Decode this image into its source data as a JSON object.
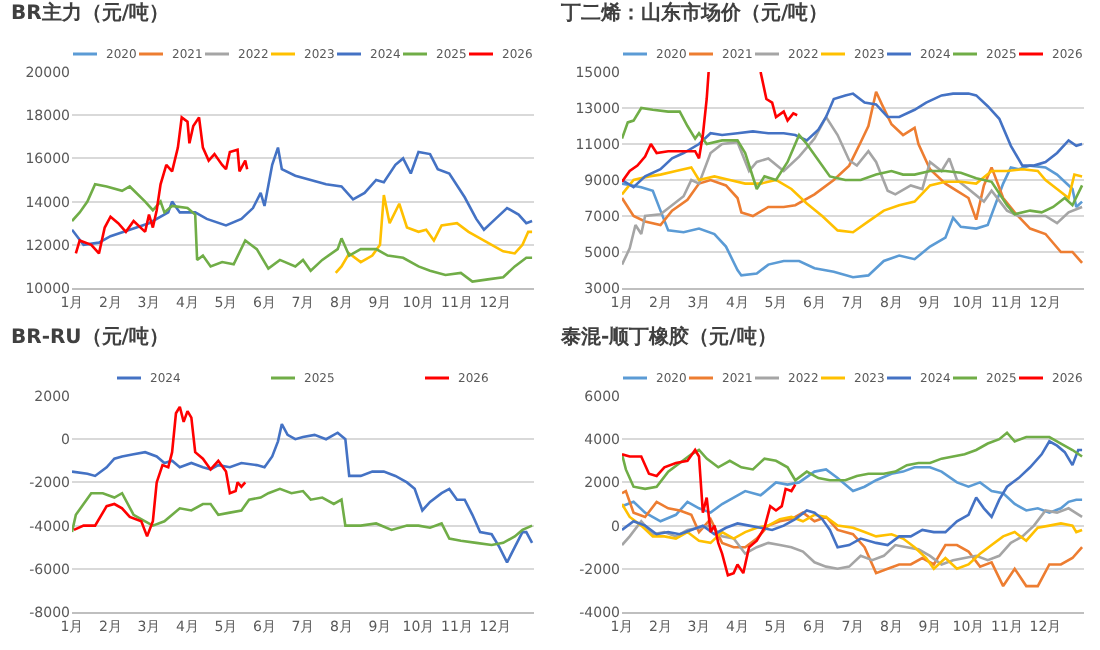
{
  "chart_data": [
    {
      "type": "line",
      "title": "BR主力（元/吨）",
      "xlim": [
        1,
        13
      ],
      "xticks": [
        {
          "value": 1,
          "label": "1月"
        },
        {
          "value": 2,
          "label": "2月"
        },
        {
          "value": 3,
          "label": "3月"
        },
        {
          "value": 4,
          "label": "4月"
        },
        {
          "value": 5,
          "label": "5月"
        },
        {
          "value": 6,
          "label": "6月"
        },
        {
          "value": 7,
          "label": "7月"
        },
        {
          "value": 8,
          "label": "8月"
        },
        {
          "value": 9,
          "label": "9月"
        },
        {
          "value": 10,
          "label": "10月"
        },
        {
          "value": 11,
          "label": "11月"
        },
        {
          "value": 12,
          "label": "12月"
        }
      ],
      "ylim": [
        10000,
        20000
      ],
      "yticks": [
        10000,
        12000,
        14000,
        16000,
        18000,
        20000
      ],
      "grid": "y",
      "legend": "top",
      "series": [
        {
          "name": "2020",
          "color": "#5b9bd5"
        },
        {
          "name": "2021",
          "color": "#ed7d31"
        },
        {
          "name": "2022",
          "color": "#a5a5a5"
        },
        {
          "name": "2023",
          "color": "#ffc000",
          "x": [
            7.85,
            8.0,
            8.2,
            8.5,
            8.8,
            9.0,
            9.1,
            9.25,
            9.5,
            9.7,
            10.0,
            10.2,
            10.4,
            10.6,
            11.0,
            11.3,
            11.6,
            11.9,
            12.2,
            12.5,
            12.7,
            12.85,
            12.95
          ],
          "values": [
            10700,
            11000,
            11600,
            11200,
            11500,
            12000,
            14300,
            13000,
            13900,
            12800,
            12600,
            12700,
            12200,
            12900,
            13000,
            12600,
            12300,
            12000,
            11700,
            11600,
            12000,
            12600,
            12600
          ]
        },
        {
          "name": "2024",
          "color": "#4472c4",
          "x": [
            1.0,
            1.3,
            1.7,
            2.0,
            2.5,
            3.0,
            3.5,
            3.6,
            3.8,
            4.2,
            4.5,
            5.0,
            5.4,
            5.7,
            5.9,
            6.0,
            6.2,
            6.35,
            6.45,
            6.8,
            7.2,
            7.6,
            8.0,
            8.3,
            8.6,
            8.9,
            9.1,
            9.4,
            9.6,
            9.8,
            10.0,
            10.3,
            10.5,
            10.8,
            11.2,
            11.5,
            11.7,
            12.0,
            12.3,
            12.6,
            12.8,
            12.95
          ],
          "values": [
            12700,
            12000,
            12100,
            12400,
            12700,
            13000,
            13500,
            14000,
            13500,
            13500,
            13200,
            12900,
            13200,
            13700,
            14400,
            13800,
            15700,
            16500,
            15500,
            15200,
            15000,
            14800,
            14700,
            14100,
            14400,
            15000,
            14900,
            15700,
            16000,
            15300,
            16300,
            16200,
            15500,
            15300,
            14200,
            13200,
            12700,
            13200,
            13700,
            13400,
            13000,
            13100
          ]
        },
        {
          "name": "2025",
          "color": "#70ad47",
          "x": [
            1.0,
            1.2,
            1.4,
            1.6,
            1.9,
            2.3,
            2.5,
            2.9,
            3.1,
            3.3,
            3.4,
            3.6,
            4.0,
            4.2,
            4.25,
            4.4,
            4.6,
            4.9,
            5.2,
            5.5,
            5.8,
            6.1,
            6.4,
            6.8,
            7.0,
            7.2,
            7.5,
            7.9,
            8.0,
            8.2,
            8.5,
            8.9,
            9.2,
            9.6,
            10.0,
            10.3,
            10.7,
            11.1,
            11.4,
            11.8,
            12.2,
            12.5,
            12.8,
            12.95
          ],
          "values": [
            13100,
            13500,
            14000,
            14800,
            14700,
            14500,
            14700,
            14000,
            13600,
            14000,
            13500,
            13800,
            13700,
            13400,
            11300,
            11500,
            11000,
            11200,
            11100,
            12200,
            11800,
            10900,
            11300,
            11000,
            11300,
            10800,
            11300,
            11800,
            12300,
            11500,
            11800,
            11800,
            11500,
            11400,
            11000,
            10800,
            10600,
            10700,
            10300,
            10400,
            10500,
            11000,
            11400,
            11400
          ]
        },
        {
          "name": "2026",
          "color": "#ff0000",
          "x": [
            1.1,
            1.2,
            1.5,
            1.7,
            1.85,
            2.0,
            2.2,
            2.4,
            2.6,
            2.9,
            3.0,
            3.1,
            3.2,
            3.3,
            3.45,
            3.6,
            3.75,
            3.85,
            4.0,
            4.05,
            4.15,
            4.3,
            4.4,
            4.55,
            4.7,
            4.9,
            5.0,
            5.1,
            5.3,
            5.35,
            5.5,
            5.55
          ],
          "values": [
            11600,
            12200,
            12000,
            11600,
            12800,
            13300,
            13000,
            12600,
            13100,
            12600,
            13400,
            12800,
            13600,
            14800,
            15700,
            15400,
            16500,
            17900,
            17700,
            16700,
            17500,
            17900,
            16500,
            15900,
            16200,
            15700,
            15500,
            16300,
            16400,
            15400,
            15900,
            15500
          ]
        }
      ]
    },
    {
      "type": "line",
      "title": "丁二烯：山东市场价（元/吨）",
      "xlim": [
        1,
        13
      ],
      "xticks": [
        {
          "value": 1,
          "label": "1月"
        },
        {
          "value": 2,
          "label": "2月"
        },
        {
          "value": 3,
          "label": "3月"
        },
        {
          "value": 4,
          "label": "4月"
        },
        {
          "value": 5,
          "label": "5月"
        },
        {
          "value": 6,
          "label": "6月"
        },
        {
          "value": 7,
          "label": "7月"
        },
        {
          "value": 8,
          "label": "8月"
        },
        {
          "value": 9,
          "label": "9月"
        },
        {
          "value": 10,
          "label": "10月"
        },
        {
          "value": 11,
          "label": "11月"
        },
        {
          "value": 12,
          "label": "12月"
        }
      ],
      "ylim": [
        3000,
        15000
      ],
      "yticks": [
        3000,
        5000,
        7000,
        9000,
        11000,
        13000,
        15000
      ],
      "grid": "y",
      "legend": "top",
      "series": [
        {
          "name": "2020",
          "color": "#5b9bd5",
          "x": [
            1.0,
            1.5,
            1.8,
            2.0,
            2.2,
            2.6,
            3.0,
            3.4,
            3.7,
            4.0,
            4.1,
            4.5,
            4.8,
            5.2,
            5.6,
            6.0,
            6.5,
            7.0,
            7.4,
            7.8,
            8.2,
            8.6,
            9.0,
            9.4,
            9.6,
            9.8,
            10.2,
            10.5,
            10.9,
            11.1,
            11.3,
            11.6,
            12.0,
            12.3,
            12.7,
            12.8,
            12.95
          ],
          "values": [
            8800,
            8600,
            8400,
            7300,
            6200,
            6100,
            6300,
            6000,
            5300,
            4000,
            3700,
            3800,
            4300,
            4500,
            4500,
            4100,
            3900,
            3600,
            3700,
            4500,
            4800,
            4600,
            5300,
            5800,
            6900,
            6400,
            6300,
            6500,
            8800,
            9700,
            9600,
            9800,
            9700,
            9300,
            8500,
            7500,
            7800
          ]
        },
        {
          "name": "2021",
          "color": "#ed7d31",
          "x": [
            1.0,
            1.3,
            1.6,
            2.0,
            2.3,
            2.7,
            3.0,
            3.3,
            3.7,
            4.0,
            4.1,
            4.4,
            4.8,
            5.2,
            5.5,
            6.0,
            6.5,
            6.9,
            7.2,
            7.4,
            7.6,
            7.75,
            8.0,
            8.3,
            8.6,
            8.7,
            9.0,
            9.4,
            9.7,
            10.0,
            10.2,
            10.4,
            10.6,
            10.9,
            11.2,
            11.6,
            12.0,
            12.4,
            12.7,
            12.95
          ],
          "values": [
            8000,
            7000,
            6700,
            6500,
            7300,
            7900,
            8800,
            9000,
            8700,
            8000,
            7200,
            7000,
            7500,
            7500,
            7600,
            8200,
            9000,
            9800,
            11100,
            12000,
            13900,
            13200,
            12100,
            11500,
            11900,
            11000,
            9600,
            8800,
            8400,
            8000,
            6800,
            8700,
            9700,
            8000,
            7200,
            6300,
            6000,
            5000,
            5000,
            4400
          ]
        },
        {
          "name": "2022",
          "color": "#a5a5a5",
          "x": [
            1.0,
            1.2,
            1.35,
            1.5,
            1.6,
            2.0,
            2.3,
            2.6,
            2.8,
            3.0,
            3.3,
            3.6,
            4.0,
            4.3,
            4.5,
            4.8,
            5.2,
            5.6,
            6.0,
            6.3,
            6.6,
            6.9,
            7.1,
            7.4,
            7.6,
            7.9,
            8.1,
            8.5,
            8.8,
            9.0,
            9.3,
            9.5,
            9.7,
            10.0,
            10.4,
            10.6,
            11.0,
            11.3,
            11.7,
            12.0,
            12.3,
            12.6,
            12.95
          ],
          "values": [
            4300,
            5200,
            6500,
            6000,
            7000,
            7100,
            7600,
            8100,
            9000,
            8800,
            10500,
            11000,
            11100,
            9500,
            10000,
            10200,
            9500,
            10300,
            11300,
            12500,
            11500,
            10100,
            9800,
            10600,
            10000,
            8400,
            8200,
            8700,
            8500,
            10000,
            9500,
            10200,
            9000,
            8500,
            7800,
            8400,
            7300,
            7000,
            7000,
            7000,
            6600,
            7200,
            7500
          ]
        },
        {
          "name": "2023",
          "color": "#ffc000",
          "x": [
            1.0,
            1.3,
            1.7,
            2.0,
            2.4,
            2.8,
            3.0,
            3.4,
            3.8,
            4.2,
            4.6,
            5.0,
            5.4,
            5.8,
            6.2,
            6.6,
            7.0,
            7.4,
            7.8,
            8.2,
            8.6,
            9.0,
            9.4,
            9.8,
            10.2,
            10.6,
            11.0,
            11.4,
            11.8,
            12.0,
            12.3,
            12.6,
            12.75,
            12.95
          ],
          "values": [
            8200,
            9000,
            9200,
            9300,
            9500,
            9700,
            9000,
            9200,
            9000,
            8800,
            8800,
            9000,
            8500,
            7700,
            7000,
            6200,
            6100,
            6700,
            7300,
            7600,
            7800,
            8700,
            8900,
            8900,
            8800,
            9500,
            9500,
            9600,
            9500,
            9000,
            8500,
            8000,
            9300,
            9200
          ]
        },
        {
          "name": "2024",
          "color": "#4472c4",
          "x": [
            1.0,
            1.3,
            1.6,
            2.0,
            2.3,
            2.6,
            3.0,
            3.3,
            3.6,
            4.0,
            4.4,
            4.8,
            5.2,
            5.5,
            5.8,
            6.1,
            6.3,
            6.5,
            6.8,
            7.0,
            7.3,
            7.6,
            7.9,
            8.2,
            8.6,
            8.9,
            9.3,
            9.6,
            10.0,
            10.2,
            10.5,
            10.8,
            11.1,
            11.4,
            11.7,
            12.0,
            12.3,
            12.6,
            12.8,
            12.95
          ],
          "values": [
            9000,
            8600,
            9200,
            9600,
            10200,
            10500,
            11000,
            11600,
            11500,
            11600,
            11700,
            11600,
            11600,
            11500,
            11200,
            11800,
            12500,
            13500,
            13700,
            13800,
            13300,
            13200,
            12500,
            12500,
            12900,
            13300,
            13700,
            13800,
            13800,
            13700,
            13100,
            12400,
            10900,
            9800,
            9800,
            10000,
            10500,
            11200,
            10900,
            11000
          ]
        },
        {
          "name": "2025",
          "color": "#70ad47",
          "x": [
            1.0,
            1.15,
            1.3,
            1.5,
            1.8,
            2.2,
            2.5,
            2.7,
            2.9,
            3.0,
            3.2,
            3.6,
            4.0,
            4.2,
            4.5,
            4.7,
            5.0,
            5.3,
            5.6,
            5.8,
            6.1,
            6.4,
            6.8,
            7.2,
            7.6,
            8.0,
            8.3,
            8.6,
            9.0,
            9.4,
            9.8,
            10.2,
            10.6,
            11.0,
            11.2,
            11.6,
            11.9,
            12.2,
            12.5,
            12.7,
            12.95
          ],
          "values": [
            11300,
            12200,
            12300,
            13000,
            12900,
            12800,
            12800,
            12000,
            11300,
            11600,
            11000,
            11200,
            11200,
            10500,
            8500,
            9200,
            9000,
            10000,
            11500,
            11000,
            10100,
            9200,
            9000,
            9000,
            9300,
            9500,
            9300,
            9300,
            9500,
            9500,
            9400,
            9100,
            8900,
            7600,
            7100,
            7300,
            7200,
            7500,
            8000,
            7600,
            8700
          ]
        },
        {
          "name": "2026",
          "color": "#ff0000",
          "x": [
            1.0,
            1.2,
            1.4,
            1.6,
            1.75,
            1.9,
            2.2,
            2.6,
            2.9,
            3.0,
            3.1,
            3.2,
            3.25,
            3.3,
            4.5,
            4.6,
            4.75,
            4.9,
            5.0,
            5.2,
            5.3,
            5.45,
            5.55
          ],
          "values": [
            8900,
            9500,
            9800,
            10300,
            11000,
            10500,
            10600,
            10600,
            10600,
            10200,
            11500,
            13500,
            15000,
            null,
            null,
            15000,
            13500,
            13300,
            12500,
            12800,
            12300,
            12700,
            12600
          ]
        }
      ]
    },
    {
      "type": "line",
      "title": "BR-RU（元/吨）",
      "xlim": [
        1,
        13
      ],
      "xticks": [
        {
          "value": 1,
          "label": "1月"
        },
        {
          "value": 2,
          "label": "2月"
        },
        {
          "value": 3,
          "label": "3月"
        },
        {
          "value": 4,
          "label": "4月"
        },
        {
          "value": 5,
          "label": "5月"
        },
        {
          "value": 6,
          "label": "6月"
        },
        {
          "value": 7,
          "label": "7月"
        },
        {
          "value": 8,
          "label": "8月"
        },
        {
          "value": 9,
          "label": "9月"
        },
        {
          "value": 10,
          "label": "10月"
        },
        {
          "value": 11,
          "label": "11月"
        },
        {
          "value": 12,
          "label": "12月"
        }
      ],
      "ylim": [
        -8000,
        2000
      ],
      "yticks": [
        -8000,
        -6000,
        -4000,
        -2000,
        0,
        2000
      ],
      "grid": "y",
      "legend": "top",
      "series": [
        {
          "name": "2024",
          "color": "#4472c4",
          "x": [
            1.0,
            1.4,
            1.6,
            1.9,
            2.1,
            2.3,
            2.6,
            2.9,
            3.2,
            3.4,
            3.6,
            3.8,
            4.1,
            4.4,
            4.6,
            4.8,
            5.1,
            5.4,
            5.8,
            6.0,
            6.2,
            6.35,
            6.45,
            6.6,
            6.8,
            7.0,
            7.3,
            7.6,
            7.9,
            8.1,
            8.2,
            8.5,
            8.8,
            9.1,
            9.4,
            9.7,
            9.9,
            10.1,
            10.3,
            10.6,
            10.8,
            11.0,
            11.2,
            11.4,
            11.6,
            11.9,
            12.1,
            12.3,
            12.5,
            12.7,
            12.8,
            12.95
          ],
          "values": [
            -1500,
            -1600,
            -1700,
            -1300,
            -900,
            -800,
            -700,
            -600,
            -800,
            -1100,
            -1000,
            -1300,
            -1100,
            -1300,
            -1400,
            -1200,
            -1300,
            -1100,
            -1200,
            -1300,
            -800,
            -100,
            700,
            200,
            0,
            100,
            200,
            0,
            300,
            0,
            -1700,
            -1700,
            -1500,
            -1500,
            -1700,
            -2000,
            -2300,
            -3300,
            -2900,
            -2500,
            -2300,
            -2800,
            -2800,
            -3500,
            -4300,
            -4400,
            -5000,
            -5700,
            -5000,
            -4300,
            -4300,
            -4800
          ]
        },
        {
          "name": "2025",
          "color": "#70ad47",
          "x": [
            1.0,
            1.1,
            1.3,
            1.5,
            1.8,
            2.1,
            2.3,
            2.6,
            2.9,
            3.1,
            3.4,
            3.8,
            4.1,
            4.4,
            4.6,
            4.8,
            5.1,
            5.4,
            5.6,
            5.9,
            6.1,
            6.4,
            6.7,
            7.0,
            7.2,
            7.5,
            7.8,
            8.0,
            8.1,
            8.5,
            8.9,
            9.3,
            9.7,
            10.0,
            10.3,
            10.6,
            10.8,
            11.1,
            11.5,
            11.9,
            12.2,
            12.5,
            12.7,
            12.95
          ],
          "values": [
            -4300,
            -3500,
            -3000,
            -2500,
            -2500,
            -2700,
            -2500,
            -3500,
            -3800,
            -4000,
            -3800,
            -3200,
            -3300,
            -3000,
            -3000,
            -3500,
            -3400,
            -3300,
            -2800,
            -2700,
            -2500,
            -2300,
            -2500,
            -2400,
            -2800,
            -2700,
            -3000,
            -2800,
            -4000,
            -4000,
            -3900,
            -4200,
            -4000,
            -4000,
            -4100,
            -3900,
            -4600,
            -4700,
            -4800,
            -4900,
            -4800,
            -4500,
            -4200,
            -4000
          ]
        },
        {
          "name": "2026",
          "color": "#ff0000",
          "x": [
            1.05,
            1.3,
            1.6,
            1.9,
            2.1,
            2.3,
            2.5,
            2.8,
            2.95,
            3.1,
            3.2,
            3.35,
            3.5,
            3.6,
            3.7,
            3.8,
            3.9,
            4.0,
            4.1,
            4.2,
            4.4,
            4.6,
            4.8,
            5.0,
            5.1,
            5.25,
            5.3,
            5.4,
            5.5
          ],
          "values": [
            -4200,
            -4000,
            -4000,
            -3100,
            -3000,
            -3200,
            -3600,
            -3800,
            -4500,
            -3800,
            -2000,
            -1200,
            -1300,
            -600,
            1200,
            1500,
            800,
            1300,
            1000,
            -600,
            -900,
            -1400,
            -1000,
            -1500,
            -2500,
            -2400,
            -2000,
            -2200,
            -2000
          ]
        }
      ]
    },
    {
      "type": "line",
      "title": "泰混-顺丁橡胶（元/吨）",
      "xlim": [
        1,
        13
      ],
      "xticks": [
        {
          "value": 1,
          "label": "1月"
        },
        {
          "value": 2,
          "label": "2月"
        },
        {
          "value": 3,
          "label": "3月"
        },
        {
          "value": 4,
          "label": "4月"
        },
        {
          "value": 5,
          "label": "5月"
        },
        {
          "value": 6,
          "label": "6月"
        },
        {
          "value": 7,
          "label": "7月"
        },
        {
          "value": 8,
          "label": "8月"
        },
        {
          "value": 9,
          "label": "9月"
        },
        {
          "value": 10,
          "label": "10月"
        },
        {
          "value": 11,
          "label": "11月"
        },
        {
          "value": 12,
          "label": "12月"
        }
      ],
      "ylim": [
        -4000,
        6000
      ],
      "yticks": [
        -4000,
        -2000,
        0,
        2000,
        4000,
        6000
      ],
      "grid": "y",
      "legend": "top",
      "series": [
        {
          "name": "2020",
          "color": "#5b9bd5",
          "x": [
            1.0,
            1.3,
            1.6,
            2.0,
            2.4,
            2.7,
            3.0,
            3.3,
            3.6,
            3.9,
            4.2,
            4.6,
            5.0,
            5.3,
            5.6,
            6.0,
            6.3,
            6.6,
            7.0,
            7.3,
            7.6,
            8.0,
            8.3,
            8.6,
            9.0,
            9.3,
            9.7,
            10.0,
            10.3,
            10.6,
            10.9,
            11.2,
            11.5,
            11.8,
            12.1,
            12.4,
            12.6,
            12.8,
            12.95
          ],
          "values": [
            900,
            1100,
            600,
            200,
            500,
            1100,
            800,
            600,
            1000,
            1300,
            1600,
            1400,
            2000,
            1900,
            2000,
            2500,
            2600,
            2200,
            1600,
            1800,
            2100,
            2400,
            2500,
            2700,
            2700,
            2500,
            2000,
            1800,
            2000,
            1600,
            1500,
            1000,
            700,
            800,
            600,
            800,
            1100,
            1200,
            1200
          ]
        },
        {
          "name": "2021",
          "color": "#ed7d31",
          "x": [
            1.0,
            1.1,
            1.3,
            1.6,
            1.9,
            2.2,
            2.5,
            2.8,
            3.0,
            3.3,
            3.6,
            3.9,
            4.2,
            4.5,
            4.8,
            5.1,
            5.4,
            5.7,
            6.0,
            6.3,
            6.6,
            7.0,
            7.3,
            7.6,
            7.9,
            8.2,
            8.5,
            8.8,
            9.1,
            9.4,
            9.7,
            10.0,
            10.3,
            10.6,
            10.9,
            11.2,
            11.5,
            11.8,
            12.1,
            12.4,
            12.7,
            12.95
          ],
          "values": [
            1500,
            1600,
            600,
            400,
            1100,
            800,
            700,
            500,
            -300,
            300,
            -800,
            -1000,
            -1000,
            -600,
            0,
            200,
            300,
            600,
            200,
            400,
            -200,
            -400,
            -1000,
            -2200,
            -2000,
            -1800,
            -1800,
            -1500,
            -1800,
            -900,
            -900,
            -1200,
            -1900,
            -1700,
            -2800,
            -2000,
            -2800,
            -2800,
            -1800,
            -1800,
            -1500,
            -1000
          ]
        },
        {
          "name": "2022",
          "color": "#a5a5a5",
          "x": [
            1.0,
            1.2,
            1.5,
            1.8,
            2.1,
            2.4,
            2.7,
            3.0,
            3.3,
            3.6,
            3.9,
            4.2,
            4.5,
            4.8,
            5.1,
            5.4,
            5.7,
            6.0,
            6.3,
            6.6,
            6.9,
            7.2,
            7.5,
            7.8,
            8.1,
            8.4,
            8.7,
            9.0,
            9.3,
            9.6,
            9.9,
            10.2,
            10.5,
            10.8,
            11.1,
            11.4,
            11.7,
            12.0,
            12.3,
            12.6,
            12.95
          ],
          "values": [
            -900,
            -500,
            200,
            -400,
            -300,
            -500,
            -200,
            -100,
            0,
            -500,
            -600,
            -1300,
            -1000,
            -800,
            -900,
            -1000,
            -1200,
            -1700,
            -1900,
            -2000,
            -1900,
            -1400,
            -1600,
            -1400,
            -900,
            -1000,
            -1100,
            -1400,
            -1800,
            -1600,
            -1500,
            -1400,
            -1600,
            -1400,
            -800,
            -500,
            0,
            700,
            600,
            800,
            400
          ]
        },
        {
          "name": "2023",
          "color": "#ffc000",
          "x": [
            1.0,
            1.2,
            1.5,
            1.8,
            2.1,
            2.4,
            2.7,
            3.0,
            3.3,
            3.6,
            3.9,
            4.2,
            4.5,
            4.8,
            5.1,
            5.4,
            5.7,
            6.0,
            6.3,
            6.6,
            7.0,
            7.3,
            7.6,
            8.0,
            8.3,
            8.6,
            8.9,
            9.1,
            9.4,
            9.7,
            10.0,
            10.3,
            10.6,
            10.9,
            11.2,
            11.5,
            11.8,
            12.1,
            12.4,
            12.7,
            12.8,
            12.95
          ],
          "values": [
            1000,
            400,
            0,
            -500,
            -500,
            -600,
            -300,
            -700,
            -800,
            -300,
            -600,
            -300,
            -100,
            0,
            300,
            400,
            200,
            500,
            400,
            0,
            -100,
            -300,
            -500,
            -400,
            -600,
            -1000,
            -1500,
            -2000,
            -1500,
            -2000,
            -1800,
            -1300,
            -900,
            -500,
            -300,
            -700,
            -100,
            0,
            100,
            0,
            -300,
            -200
          ]
        },
        {
          "name": "2024",
          "color": "#4472c4",
          "x": [
            1.0,
            1.3,
            1.6,
            1.9,
            2.2,
            2.5,
            2.8,
            3.1,
            3.4,
            3.7,
            4.0,
            4.3,
            4.6,
            4.9,
            5.2,
            5.5,
            5.8,
            6.0,
            6.2,
            6.4,
            6.6,
            6.9,
            7.2,
            7.6,
            7.9,
            8.2,
            8.5,
            8.8,
            9.1,
            9.4,
            9.7,
            10.0,
            10.2,
            10.4,
            10.6,
            10.8,
            11.0,
            11.3,
            11.6,
            11.9,
            12.1,
            12.3,
            12.5,
            12.7,
            12.85,
            12.95
          ],
          "values": [
            -200,
            200,
            0,
            -400,
            -300,
            -400,
            -200,
            0,
            -400,
            -100,
            100,
            0,
            -100,
            -200,
            0,
            300,
            700,
            600,
            300,
            -200,
            -1000,
            -900,
            -600,
            -800,
            -900,
            -500,
            -500,
            -200,
            -300,
            -300,
            200,
            500,
            1300,
            800,
            400,
            1200,
            1800,
            2200,
            2700,
            3300,
            3900,
            3700,
            3400,
            2800,
            3500,
            3500
          ]
        },
        {
          "name": "2025",
          "color": "#70ad47",
          "x": [
            1.0,
            1.1,
            1.3,
            1.6,
            1.9,
            2.2,
            2.5,
            2.8,
            3.0,
            3.2,
            3.5,
            3.8,
            4.1,
            4.4,
            4.7,
            5.0,
            5.3,
            5.5,
            5.8,
            6.1,
            6.4,
            6.8,
            7.1,
            7.4,
            7.8,
            8.1,
            8.4,
            8.7,
            9.0,
            9.3,
            9.6,
            9.9,
            10.2,
            10.5,
            10.8,
            11.0,
            11.2,
            11.5,
            11.8,
            12.1,
            12.4,
            12.7,
            12.95
          ],
          "values": [
            3300,
            2600,
            1800,
            1700,
            1800,
            2500,
            2900,
            3300,
            3500,
            3100,
            2700,
            3000,
            2700,
            2600,
            3100,
            3000,
            2700,
            2100,
            2500,
            2200,
            2100,
            2100,
            2300,
            2400,
            2400,
            2500,
            2800,
            2900,
            2900,
            3100,
            3200,
            3300,
            3500,
            3800,
            4000,
            4300,
            3900,
            4100,
            4100,
            4100,
            3800,
            3500,
            3200
          ]
        },
        {
          "name": "2026",
          "color": "#ff0000",
          "x": [
            1.0,
            1.2,
            1.5,
            1.7,
            1.9,
            2.1,
            2.4,
            2.7,
            2.9,
            3.0,
            3.1,
            3.2,
            3.3,
            3.4,
            3.5,
            3.6,
            3.75,
            3.9,
            4.0,
            4.15,
            4.3,
            4.5,
            4.7,
            4.85,
            5.0,
            5.15,
            5.25,
            5.4,
            5.5
          ],
          "values": [
            3300,
            3200,
            3200,
            2400,
            2300,
            2700,
            2900,
            3000,
            3500,
            3200,
            600,
            1300,
            -300,
            0,
            -800,
            -1300,
            -2300,
            -2200,
            -1800,
            -2200,
            -1000,
            -700,
            -100,
            900,
            700,
            900,
            1700,
            1600,
            1900
          ]
        }
      ]
    }
  ]
}
